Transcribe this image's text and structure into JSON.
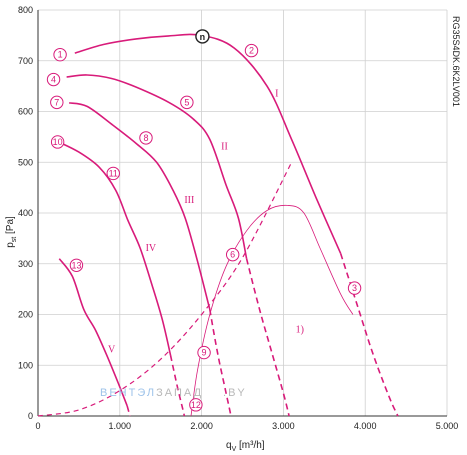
{
  "chart_data": {
    "type": "line",
    "xlabel_main": "q",
    "xlabel_sub": "V",
    "xlabel_unit": "[m³/h]",
    "ylabel_main": "p",
    "ylabel_sub": "st",
    "ylabel_unit": "[Pa]",
    "xlim": [
      0,
      5000
    ],
    "ylim": [
      0,
      800
    ],
    "x_ticks": [
      0,
      1000,
      2000,
      3000,
      4000,
      5000
    ],
    "x_tick_labels": [
      "0",
      "1.000",
      "2.000",
      "3.000",
      "4.000",
      "5.000"
    ],
    "y_ticks": [
      0,
      100,
      200,
      300,
      400,
      500,
      600,
      700,
      800
    ],
    "y_tick_labels": [
      "0",
      "100",
      "200",
      "300",
      "400",
      "500",
      "600",
      "700",
      "800"
    ],
    "grid": true,
    "model_code": "RG35S4DK.6K2LV001",
    "watermark_a": "ВЕНТЭЛ",
    "watermark_b": "ЗАПАД",
    "watermark_c": ".BY",
    "colors": {
      "curve": "#d81b7a",
      "grid": "#cfcfcf",
      "axis": "#333333"
    },
    "curves": [
      {
        "label": "I",
        "label_pos": [
          2920,
          630
        ],
        "points": [
          [
            450,
            715
          ],
          [
            800,
            732
          ],
          [
            1200,
            743
          ],
          [
            1600,
            749
          ],
          [
            2000,
            750
          ],
          [
            2400,
            725
          ],
          [
            2800,
            650
          ],
          [
            3100,
            545
          ],
          [
            3400,
            430
          ],
          [
            3700,
            320
          ]
        ]
      },
      {
        "label": "II",
        "label_pos": [
          2280,
          525
        ],
        "points": [
          [
            350,
            668
          ],
          [
            600,
            672
          ],
          [
            900,
            665
          ],
          [
            1200,
            648
          ],
          [
            1600,
            618
          ],
          [
            1900,
            585
          ],
          [
            2100,
            545
          ],
          [
            2300,
            455
          ],
          [
            2450,
            390
          ],
          [
            2550,
            310
          ]
        ]
      },
      {
        "label": "III",
        "label_pos": [
          1850,
          420
        ],
        "points": [
          [
            380,
            617
          ],
          [
            600,
            610
          ],
          [
            900,
            575
          ],
          [
            1200,
            537
          ],
          [
            1450,
            500
          ],
          [
            1650,
            445
          ],
          [
            1800,
            390
          ],
          [
            1950,
            305
          ],
          [
            2100,
            210
          ]
        ]
      },
      {
        "label": "IV",
        "label_pos": [
          1380,
          325
        ],
        "points": [
          [
            250,
            540
          ],
          [
            500,
            520
          ],
          [
            750,
            490
          ],
          [
            950,
            445
          ],
          [
            1100,
            385
          ],
          [
            1250,
            330
          ],
          [
            1400,
            255
          ],
          [
            1520,
            190
          ],
          [
            1620,
            120
          ]
        ]
      },
      {
        "label": "V",
        "label_pos": [
          900,
          125
        ],
        "points": [
          [
            260,
            310
          ],
          [
            420,
            275
          ],
          [
            560,
            210
          ],
          [
            700,
            170
          ],
          [
            840,
            120
          ],
          [
            980,
            65
          ],
          [
            1090,
            20
          ]
        ]
      }
    ],
    "dashed_extensions": [
      [
        [
          3700,
          320
        ],
        [
          3900,
          220
        ],
        [
          4100,
          120
        ],
        [
          4300,
          35
        ],
        [
          4400,
          0
        ]
      ],
      [
        [
          2550,
          310
        ],
        [
          2700,
          215
        ],
        [
          2850,
          130
        ],
        [
          3000,
          45
        ],
        [
          3070,
          0
        ]
      ],
      [
        [
          2100,
          210
        ],
        [
          2200,
          120
        ],
        [
          2300,
          45
        ],
        [
          2360,
          0
        ]
      ],
      [
        [
          1620,
          120
        ],
        [
          1700,
          60
        ],
        [
          1760,
          20
        ],
        [
          1790,
          0
        ]
      ],
      [
        [
          1090,
          20
        ],
        [
          1125,
          0
        ]
      ]
    ],
    "system_curve": [
      [
        0,
        0
      ],
      [
        500,
        12
      ],
      [
        1000,
        50
      ],
      [
        1500,
        112
      ],
      [
        2000,
        200
      ],
      [
        2500,
        312
      ],
      [
        3100,
        500
      ]
    ],
    "system_curve_thin": [
      [
        1870,
        0
      ],
      [
        1950,
        90
      ],
      [
        2100,
        200
      ],
      [
        2300,
        295
      ],
      [
        2550,
        365
      ],
      [
        2800,
        405
      ],
      [
        3050,
        415
      ],
      [
        3250,
        400
      ],
      [
        3450,
        330
      ],
      [
        3700,
        240
      ],
      [
        3850,
        200
      ]
    ],
    "markers": [
      {
        "label": "1",
        "pos": [
          270,
          712
        ]
      },
      {
        "label": "2",
        "pos": [
          2610,
          720
        ]
      },
      {
        "label": "3",
        "pos": [
          3870,
          252
        ]
      },
      {
        "label": "4",
        "pos": [
          190,
          663
        ]
      },
      {
        "label": "5",
        "pos": [
          1820,
          618
        ]
      },
      {
        "label": "6",
        "pos": [
          2380,
          318
        ]
      },
      {
        "label": "7",
        "pos": [
          230,
          618
        ]
      },
      {
        "label": "8",
        "pos": [
          1320,
          548
        ]
      },
      {
        "label": "9",
        "pos": [
          2030,
          125
        ]
      },
      {
        "label": "10",
        "pos": [
          240,
          540
        ]
      },
      {
        "label": "11",
        "pos": [
          920,
          478
        ]
      },
      {
        "label": "12",
        "pos": [
          1930,
          22
        ]
      },
      {
        "label": "13",
        "pos": [
          470,
          297
        ]
      }
    ],
    "highlight_marker": {
      "label": "n",
      "pos": [
        2010,
        748
      ]
    },
    "annotation": {
      "text": "1)",
      "pos": [
        3200,
        165
      ]
    }
  }
}
